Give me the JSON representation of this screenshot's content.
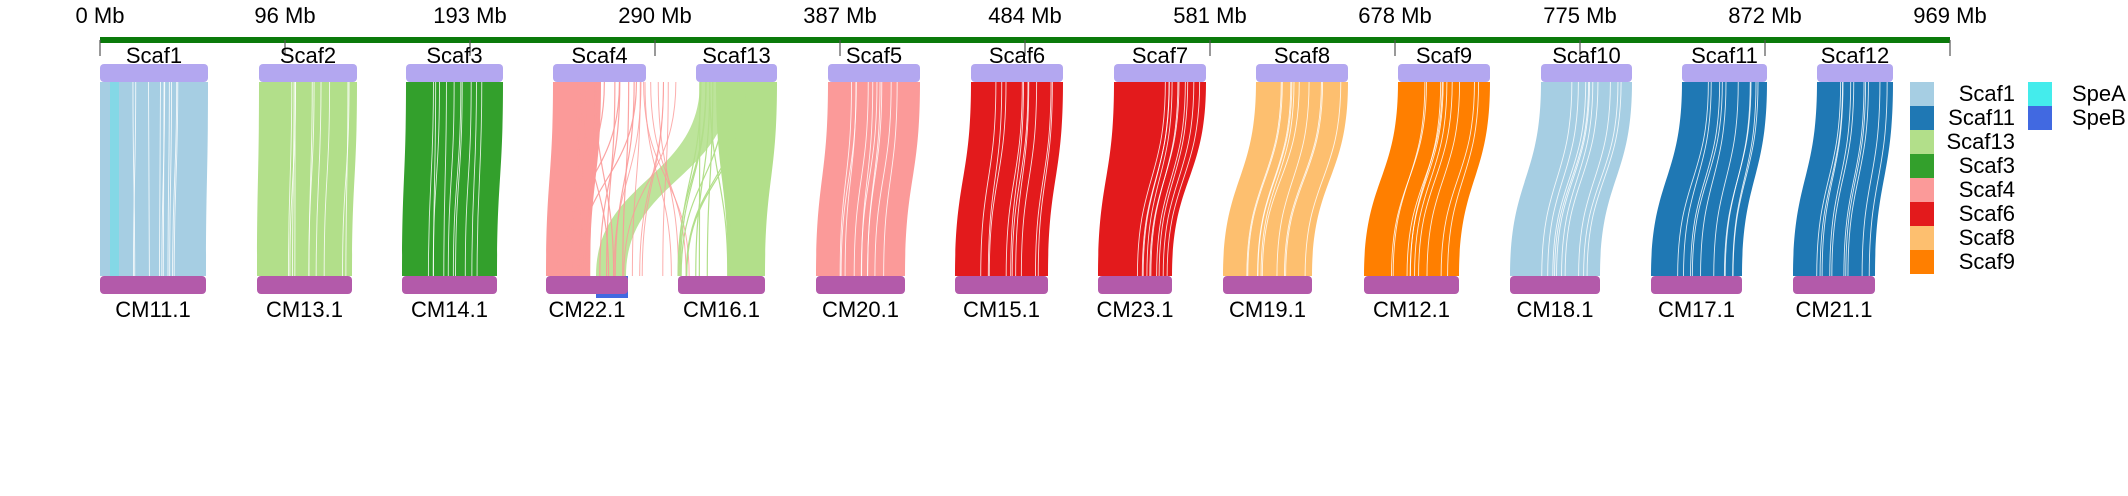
{
  "ruler": {
    "color": "#0b7a0b",
    "ticks": [
      "0 Mb",
      "96 Mb",
      "193 Mb",
      "290 Mb",
      "387 Mb",
      "484 Mb",
      "581 Mb",
      "678 Mb",
      "775 Mb",
      "872 Mb",
      "969 Mb"
    ]
  },
  "colors": {
    "top_bar": "#b3a7f0",
    "bottom_bar": "#b35aaa"
  },
  "pairs": [
    {
      "top": "Scaf1",
      "bottom": "CM11.1",
      "color": "#a6cee3"
    },
    {
      "top": "Scaf2",
      "bottom": "CM13.1",
      "color": "#b2df8a"
    },
    {
      "top": "Scaf3",
      "bottom": "CM14.1",
      "color": "#33a02c"
    },
    {
      "top": "Scaf4",
      "bottom": "CM22.1",
      "color": "#fb9a99"
    },
    {
      "top": "Scaf13",
      "bottom": "CM16.1",
      "color": "#b2df8a"
    },
    {
      "top": "Scaf5",
      "bottom": "CM20.1",
      "color": "#fb9a99"
    },
    {
      "top": "Scaf6",
      "bottom": "CM15.1",
      "color": "#e31a1c"
    },
    {
      "top": "Scaf7",
      "bottom": "CM23.1",
      "color": "#e31a1c"
    },
    {
      "top": "Scaf8",
      "bottom": "CM19.1",
      "color": "#fdbf6f"
    },
    {
      "top": "Scaf9",
      "bottom": "CM12.1",
      "color": "#ff7f00"
    },
    {
      "top": "Scaf10",
      "bottom": "CM18.1",
      "color": "#a6cee3"
    },
    {
      "top": "Scaf11",
      "bottom": "CM17.1",
      "color": "#1f78b4"
    },
    {
      "top": "Scaf12",
      "bottom": "CM21.1",
      "color": "#1f78b4"
    }
  ],
  "legend_scaffolds": [
    {
      "label": "Scaf1",
      "color": "#a6cee3"
    },
    {
      "label": "Scaf11",
      "color": "#1f78b4"
    },
    {
      "label": "Scaf13",
      "color": "#b2df8a"
    },
    {
      "label": "Scaf3",
      "color": "#33a02c"
    },
    {
      "label": "Scaf4",
      "color": "#fb9a99"
    },
    {
      "label": "Scaf6",
      "color": "#e31a1c"
    },
    {
      "label": "Scaf8",
      "color": "#fdbf6f"
    },
    {
      "label": "Scaf9",
      "color": "#ff7f00"
    }
  ],
  "legend_species": [
    {
      "label": "SpeA",
      "color": "#44ecec"
    },
    {
      "label": "SpeB",
      "color": "#4169e1"
    }
  ]
}
